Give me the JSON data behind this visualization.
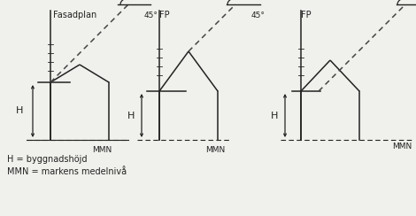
{
  "bg_color": "#f0f0ec",
  "line_color": "#222222",
  "dashed_color": "#444444",
  "title1": "Fasadplan",
  "title2": "FP",
  "title3": "FP",
  "label_h": "H",
  "label_mmn": "MMN",
  "label_angle": "45°",
  "legend1": "H = byggnadshöjd",
  "legend2": "MMN = markens medelnivå"
}
